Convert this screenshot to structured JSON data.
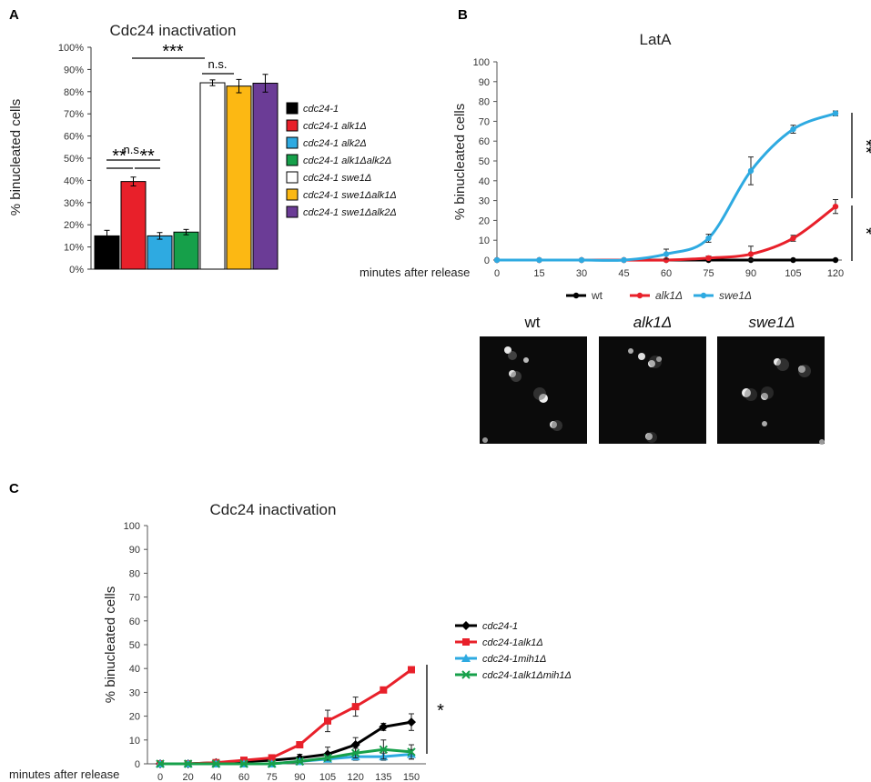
{
  "panel_labels": {
    "a": "A",
    "b": "B",
    "c": "C"
  },
  "chart_data": [
    {
      "type": "bar",
      "title": "Cdc24 inactivation",
      "ylabel": "% binucleated cells",
      "xlabel": "",
      "ylim": [
        0,
        100
      ],
      "yticks": [
        "0%",
        "10%",
        "20%",
        "30%",
        "40%",
        "50%",
        "60%",
        "70%",
        "80%",
        "90%",
        "100%"
      ],
      "categories": [
        "cdc24-1",
        "cdc24-1 alk1Δ",
        "cdc24-1 alk2Δ",
        "cdc24-1 alk1Δalk2Δ",
        "cdc24-1 swe1Δ",
        "cdc24-1 swe1Δalk1Δ",
        "cdc24-1 swe1Δalk2Δ"
      ],
      "values": [
        15,
        39.5,
        15,
        16.7,
        84,
        82.5,
        83.8
      ],
      "errors": [
        2.5,
        2,
        1.5,
        1.2,
        1.3,
        3,
        4
      ],
      "colors": [
        "#000000",
        "#e8202a",
        "#2eaae1",
        "#16a04a",
        "#ffffff",
        "#fcb813",
        "#6b3c96"
      ],
      "significance": [
        {
          "label": "**"
        },
        {
          "label": "**"
        },
        {
          "label": "n.s."
        },
        {
          "label": "***"
        },
        {
          "label": "n.s."
        }
      ]
    },
    {
      "type": "line",
      "title": "LatA",
      "ylabel": "% binucleated cells",
      "xlabel": "minutes after release",
      "ylim": [
        0,
        100
      ],
      "yticks": [
        "0",
        "10",
        "20",
        "30",
        "40",
        "50",
        "60",
        "70",
        "80",
        "90",
        "100"
      ],
      "x": [
        0,
        15,
        30,
        45,
        60,
        75,
        90,
        105,
        120
      ],
      "xticklabels": [
        "0",
        "15",
        "30",
        "45",
        "60",
        "75",
        "90",
        "105",
        "120"
      ],
      "series": [
        {
          "name": "wt",
          "color": "#000000",
          "values": [
            0,
            0,
            0,
            0,
            0,
            0,
            0,
            0,
            0
          ],
          "errors": [
            0,
            0,
            0,
            0,
            0,
            0,
            0,
            0,
            0
          ]
        },
        {
          "name": "alk1Δ",
          "color": "#e8202a",
          "values": [
            0,
            0,
            0,
            0,
            0,
            1,
            3,
            11,
            27
          ],
          "errors": [
            0,
            0,
            0,
            0,
            0,
            1,
            4,
            1.5,
            3.5
          ]
        },
        {
          "name": "swe1Δ",
          "color": "#2eaae1",
          "values": [
            0,
            0,
            0,
            0,
            3,
            11,
            45,
            66,
            74
          ],
          "errors": [
            0,
            0,
            0,
            0,
            2.5,
            2,
            7,
            2,
            1.2
          ]
        }
      ],
      "significance": [
        {
          "label": "**"
        },
        {
          "label": "*"
        }
      ],
      "micrograph_labels": [
        "wt",
        "alk1Δ",
        "swe1Δ"
      ]
    },
    {
      "type": "line",
      "title": "Cdc24 inactivation",
      "ylabel": "% binucleated cells",
      "xlabel": "minutes after release",
      "ylim": [
        0,
        100
      ],
      "yticks": [
        "0",
        "10",
        "20",
        "30",
        "40",
        "50",
        "60",
        "70",
        "80",
        "90",
        "100"
      ],
      "x": [
        0,
        20,
        40,
        60,
        75,
        90,
        105,
        120,
        135,
        150
      ],
      "xticklabels": [
        "0",
        "20",
        "40",
        "60",
        "75",
        "90",
        "105",
        "120",
        "135",
        "150"
      ],
      "series": [
        {
          "name": "cdc24-1",
          "color": "#000000",
          "marker": "diamond",
          "values": [
            0,
            0,
            0.5,
            1,
            1.5,
            2.5,
            4,
            8,
            15.5,
            17.5
          ],
          "errors": [
            0,
            0,
            0,
            0,
            0.5,
            1.5,
            3,
            3,
            1.5,
            3.5
          ]
        },
        {
          "name": "cdc24-1alk1Δ",
          "color": "#e8202a",
          "marker": "square",
          "values": [
            0,
            0,
            0.5,
            1.5,
            2.5,
            8,
            18,
            24,
            31,
            39.5
          ],
          "errors": [
            0,
            0,
            0,
            0,
            1,
            1,
            4.5,
            4,
            0,
            1
          ]
        },
        {
          "name": "cdc24-1mih1Δ",
          "color": "#2eaae1",
          "marker": "triangle",
          "values": [
            0,
            0,
            0,
            0,
            0,
            1,
            2,
            3,
            3,
            4
          ],
          "errors": [
            0,
            0,
            0,
            0,
            0,
            0.5,
            1,
            1.5,
            1.5,
            2
          ]
        },
        {
          "name": "cdc24-1alk1Δmih1Δ",
          "color": "#16a04a",
          "marker": "x",
          "values": [
            0,
            0,
            0,
            0,
            0,
            1,
            2.5,
            4.5,
            6,
            5
          ],
          "errors": [
            0,
            0,
            0,
            0,
            0,
            0.5,
            1,
            2,
            4,
            3
          ]
        }
      ],
      "significance": [
        {
          "label": "*"
        }
      ]
    }
  ]
}
